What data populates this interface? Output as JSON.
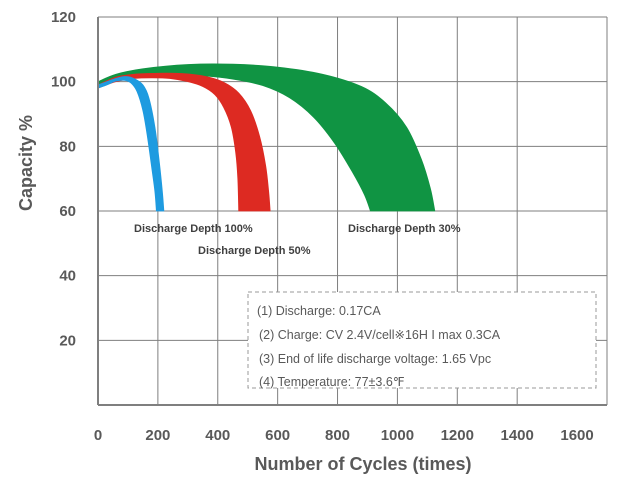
{
  "chart_data": {
    "type": "area",
    "xlabel": "Number of Cycles (times)",
    "ylabel": "Capacity %",
    "xlim": [
      0,
      1700
    ],
    "ylim": [
      0,
      120
    ],
    "xticks": [
      0,
      200,
      400,
      600,
      800,
      1000,
      1200,
      1400,
      1600
    ],
    "xtick_labels": [
      "0",
      "200",
      "400",
      "600",
      "800",
      "1000",
      "1200",
      "1400",
      "1600"
    ],
    "yticks": [
      20,
      40,
      60,
      80,
      100,
      120
    ],
    "ytick_labels": [
      "20",
      "40",
      "60",
      "80",
      "100",
      "120"
    ],
    "grid": true,
    "series": [
      {
        "name": "Discharge Depth 100%",
        "color": "#1e9be0",
        "upper": [
          [
            0,
            99
          ],
          [
            30,
            100
          ],
          [
            60,
            101
          ],
          [
            90,
            101.6
          ],
          [
            120,
            101
          ],
          [
            150,
            99
          ],
          [
            170,
            95
          ],
          [
            190,
            86
          ],
          [
            205,
            75
          ],
          [
            215,
            66
          ],
          [
            220,
            60
          ]
        ],
        "lower": [
          [
            0,
            98
          ],
          [
            30,
            99
          ],
          [
            60,
            100.2
          ],
          [
            90,
            100.4
          ],
          [
            110,
            99.6
          ],
          [
            130,
            97
          ],
          [
            150,
            91
          ],
          [
            165,
            83
          ],
          [
            180,
            73
          ],
          [
            190,
            66
          ],
          [
            195,
            60
          ]
        ]
      },
      {
        "name": "Discharge Depth 50%",
        "color": "#dd2a22",
        "upper": [
          [
            0,
            99
          ],
          [
            60,
            101.4
          ],
          [
            120,
            102.3
          ],
          [
            200,
            102.6
          ],
          [
            280,
            102.5
          ],
          [
            360,
            101.6
          ],
          [
            420,
            99.8
          ],
          [
            470,
            96.5
          ],
          [
            510,
            91
          ],
          [
            540,
            83
          ],
          [
            560,
            74
          ],
          [
            570,
            66
          ],
          [
            575,
            60
          ]
        ],
        "lower": [
          [
            0,
            98
          ],
          [
            60,
            100
          ],
          [
            120,
            101
          ],
          [
            180,
            101.2
          ],
          [
            240,
            101
          ],
          [
            300,
            100
          ],
          [
            350,
            98.5
          ],
          [
            390,
            96
          ],
          [
            420,
            92
          ],
          [
            445,
            86
          ],
          [
            460,
            78
          ],
          [
            467,
            70
          ],
          [
            470,
            60
          ]
        ]
      },
      {
        "name": "Discharge Depth 30%",
        "color": "#109443",
        "upper": [
          [
            0,
            100
          ],
          [
            60,
            102.3
          ],
          [
            150,
            104
          ],
          [
            300,
            105.3
          ],
          [
            450,
            105.4
          ],
          [
            600,
            104.5
          ],
          [
            750,
            102.3
          ],
          [
            880,
            98.5
          ],
          [
            960,
            93.5
          ],
          [
            1030,
            86
          ],
          [
            1080,
            76
          ],
          [
            1110,
            67
          ],
          [
            1125,
            60
          ]
        ],
        "lower": [
          [
            0,
            98
          ],
          [
            60,
            100.5
          ],
          [
            150,
            101.7
          ],
          [
            250,
            102.1
          ],
          [
            350,
            101.8
          ],
          [
            450,
            100.8
          ],
          [
            550,
            98.8
          ],
          [
            640,
            95
          ],
          [
            720,
            89
          ],
          [
            790,
            81
          ],
          [
            850,
            72
          ],
          [
            890,
            65
          ],
          [
            910,
            60
          ]
        ]
      }
    ],
    "annotations": [
      "Discharge Depth 100%",
      "Discharge Depth 50%",
      "Discharge Depth 30%"
    ],
    "notes": [
      "(1) Discharge: 0.17CA",
      "(2) Charge: CV 2.4V/cell※16H I max 0.3CA",
      "(3) End of life discharge voltage: 1.65 Vpc",
      "(4) Temperature: 77±3.6℉"
    ]
  }
}
